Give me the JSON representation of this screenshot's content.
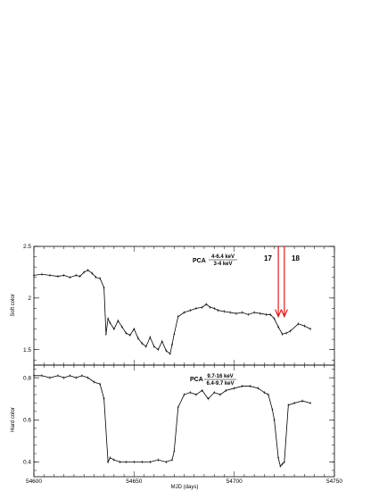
{
  "chart_data": [
    {
      "type": "line",
      "ylabel": "Soft color",
      "xlim": [
        54600,
        54750
      ],
      "ylim": [
        1.35,
        2.5
      ],
      "yticks": [
        1.5,
        2,
        2.5
      ],
      "ytick_labels": [
        "1.5",
        "2",
        "2.5"
      ],
      "annotation": {
        "prefix": "PCA",
        "numerator": "4-6.4 keV",
        "denominator": "3-4 keV"
      },
      "markers": [
        {
          "label": "17",
          "x": 54722,
          "color": "#e41a1c"
        },
        {
          "label": "18",
          "x": 54725,
          "color": "#e41a1c"
        }
      ],
      "series": [
        {
          "x": [
            54600,
            54604,
            54608,
            54612,
            54615,
            54618,
            54621,
            54623,
            54625,
            54627,
            54629,
            54631,
            54633,
            54635,
            54636,
            54637,
            54638,
            54640,
            54642,
            54644,
            54646,
            54648,
            54650,
            54652,
            54654,
            54656,
            54658,
            54660,
            54662,
            54664,
            54666,
            54668,
            54669,
            54670,
            54672,
            54675,
            54678,
            54681,
            54684,
            54686,
            54688,
            54690,
            54692,
            54695,
            54698,
            54701,
            54704,
            54707,
            54710,
            54713,
            54716,
            54718,
            54720,
            54722,
            54724,
            54726,
            54728,
            54732,
            54735,
            54738
          ],
          "y": [
            2.22,
            2.23,
            2.22,
            2.21,
            2.22,
            2.2,
            2.22,
            2.21,
            2.25,
            2.27,
            2.24,
            2.2,
            2.19,
            2.1,
            1.65,
            1.8,
            1.76,
            1.7,
            1.78,
            1.72,
            1.66,
            1.64,
            1.7,
            1.61,
            1.56,
            1.53,
            1.62,
            1.53,
            1.5,
            1.58,
            1.49,
            1.46,
            1.55,
            1.65,
            1.82,
            1.86,
            1.88,
            1.9,
            1.91,
            1.94,
            1.91,
            1.9,
            1.88,
            1.87,
            1.86,
            1.85,
            1.86,
            1.84,
            1.86,
            1.85,
            1.84,
            1.84,
            1.8,
            1.72,
            1.65,
            1.66,
            1.68,
            1.75,
            1.73,
            1.7
          ]
        }
      ]
    },
    {
      "type": "line",
      "ylabel": "Hard color",
      "xlabel": "MJD (days)",
      "xlim": [
        54600,
        54750
      ],
      "ylim": [
        0.33,
        0.86
      ],
      "xticks": [
        54600,
        54650,
        54700,
        54750
      ],
      "xtick_labels": [
        "54600",
        "54650",
        "54700",
        "54750"
      ],
      "yticks": [
        0.4,
        0.6,
        0.8
      ],
      "ytick_labels": [
        "0.4",
        "0.6",
        "0.8"
      ],
      "annotation": {
        "prefix": "PCA",
        "numerator": "9.7-16 keV",
        "denominator": "6.4-9.7 keV"
      },
      "series": [
        {
          "x": [
            54600,
            54604,
            54608,
            54612,
            54615,
            54618,
            54621,
            54624,
            54627,
            54630,
            54633,
            54635,
            54637,
            54638,
            54640,
            54643,
            54646,
            54650,
            54654,
            54658,
            54662,
            54666,
            54669,
            54670,
            54672,
            54675,
            54678,
            54681,
            54684,
            54687,
            54690,
            54693,
            54696,
            54700,
            54704,
            54708,
            54712,
            54715,
            54717,
            54719,
            54720,
            54722,
            54723,
            54724,
            54725,
            54727,
            54730,
            54734,
            54738
          ],
          "y": [
            0.81,
            0.81,
            0.8,
            0.81,
            0.8,
            0.81,
            0.8,
            0.81,
            0.8,
            0.78,
            0.77,
            0.7,
            0.4,
            0.42,
            0.41,
            0.4,
            0.4,
            0.4,
            0.4,
            0.4,
            0.41,
            0.4,
            0.41,
            0.45,
            0.66,
            0.72,
            0.73,
            0.72,
            0.74,
            0.7,
            0.73,
            0.72,
            0.74,
            0.75,
            0.76,
            0.76,
            0.75,
            0.73,
            0.72,
            0.65,
            0.6,
            0.42,
            0.38,
            0.39,
            0.4,
            0.67,
            0.68,
            0.69,
            0.68
          ]
        }
      ]
    }
  ]
}
